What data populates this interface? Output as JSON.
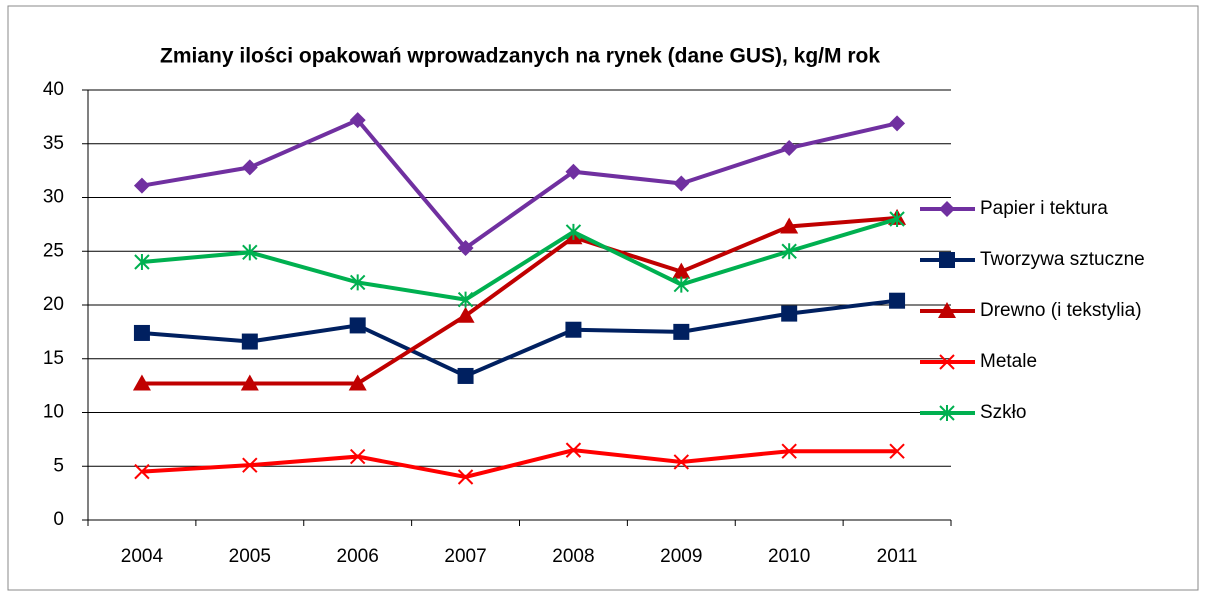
{
  "chart_data": {
    "type": "line",
    "title": "Zmiany ilości opakowań wprowadzanych na rynek (dane GUS), kg/M rok",
    "categories": [
      "2004",
      "2005",
      "2006",
      "2007",
      "2008",
      "2009",
      "2010",
      "2011"
    ],
    "series": [
      {
        "name": "Papier i tektura",
        "color": "#7030a0",
        "marker": "diamond",
        "values": [
          31.1,
          32.8,
          37.2,
          25.3,
          32.4,
          31.3,
          34.6,
          36.9
        ]
      },
      {
        "name": "Tworzywa sztuczne",
        "color": "#002060",
        "marker": "square",
        "values": [
          17.4,
          16.6,
          18.1,
          13.4,
          17.7,
          17.5,
          19.2,
          20.4
        ]
      },
      {
        "name": "Drewno (i tekstylia)",
        "color": "#c00000",
        "marker": "triangle",
        "values": [
          12.7,
          12.7,
          12.7,
          19.0,
          26.3,
          23.1,
          27.3,
          28.1
        ]
      },
      {
        "name": "Metale",
        "color": "#ff0000",
        "marker": "x",
        "values": [
          4.5,
          5.1,
          5.9,
          4.0,
          6.5,
          5.4,
          6.4,
          6.4
        ]
      },
      {
        "name": "Szkło",
        "color": "#00b050",
        "marker": "star",
        "values": [
          24.0,
          24.9,
          22.1,
          20.5,
          26.8,
          21.9,
          25.0,
          28.0
        ]
      }
    ],
    "ylim": [
      0,
      40
    ],
    "yticks": [
      0,
      5,
      10,
      15,
      20,
      25,
      30,
      35,
      40
    ],
    "grid": true,
    "legend": "right"
  }
}
